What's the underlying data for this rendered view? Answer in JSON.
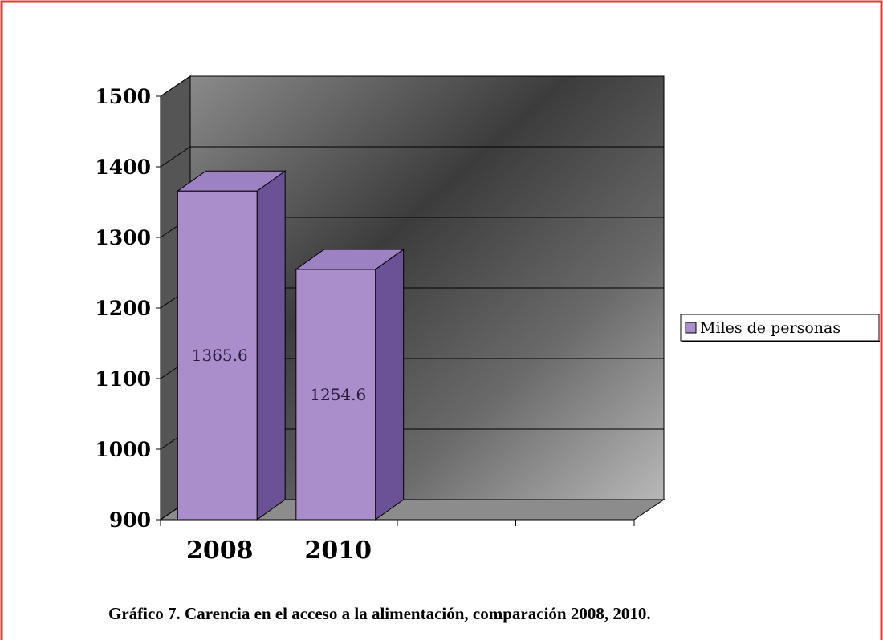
{
  "chart_data": {
    "type": "bar3d",
    "caption": "Gráfico 7. Carencia en el acceso a la alimentación, comparación 2008, 2010.",
    "categories": [
      "2008",
      "2010",
      null,
      null
    ],
    "series": [
      {
        "name": "Miles de personas",
        "color": "#a98ecb",
        "values": [
          1365.6,
          1254.6,
          null,
          null
        ]
      }
    ],
    "ylim": [
      900,
      1500
    ],
    "yticks": [
      900,
      1000,
      1100,
      1200,
      1300,
      1400,
      1500
    ],
    "grid": true,
    "legend": "right"
  }
}
